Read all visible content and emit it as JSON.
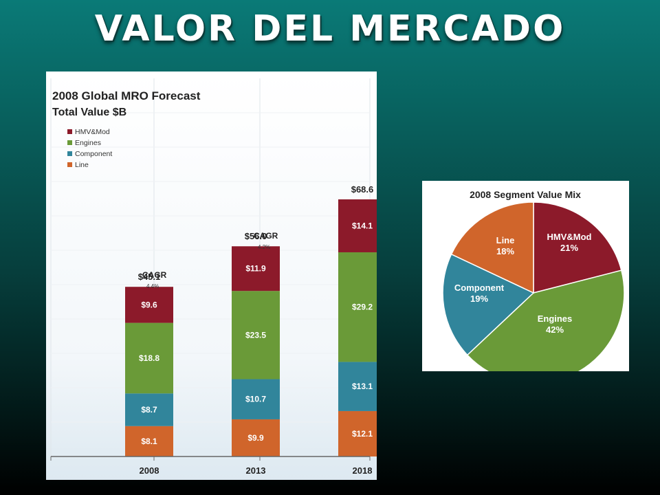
{
  "slide": {
    "title": "VALOR DEL MERCADO"
  },
  "chart_data": [
    {
      "type": "bar",
      "stacked": true,
      "title": "2008 Global MRO Forecast",
      "subtitle": "Total Value $B",
      "categories": [
        "2008",
        "2013",
        "2018"
      ],
      "series": [
        {
          "name": "Line",
          "color": "#d0652b",
          "values": [
            8.1,
            9.9,
            12.1
          ],
          "labels": [
            "$8.1",
            "$9.9",
            "$12.1"
          ]
        },
        {
          "name": "Component",
          "color": "#31859b",
          "values": [
            8.7,
            10.7,
            13.1
          ],
          "labels": [
            "$8.7",
            "$10.7",
            "$13.1"
          ]
        },
        {
          "name": "Engines",
          "color": "#6a9a38",
          "values": [
            18.8,
            23.5,
            29.2
          ],
          "labels": [
            "$18.8",
            "$23.5",
            "$29.2"
          ]
        },
        {
          "name": "HMV&Mod",
          "color": "#8c1a2a",
          "values": [
            9.6,
            11.9,
            14.1
          ],
          "labels": [
            "$9.6",
            "$11.9",
            "$14.1"
          ]
        }
      ],
      "legend_order": [
        "HMV&Mod",
        "Engines",
        "Component",
        "Line"
      ],
      "totals": [
        "$45.1",
        "$56.0",
        "$68.6"
      ],
      "annotations": [
        {
          "label": "CAGR",
          "value": "4.4%"
        },
        {
          "label": "CAGR",
          "value": "4.2%"
        }
      ],
      "legend_position": "top-left",
      "grid": true,
      "ylim": [
        0,
        75
      ]
    },
    {
      "type": "pie",
      "title": "2008 Segment Value Mix",
      "slices": [
        {
          "name": "HMV&Mod",
          "value": 21,
          "label": "21%",
          "color": "#8c1a2a"
        },
        {
          "name": "Engines",
          "value": 42,
          "label": "42%",
          "color": "#6a9a38"
        },
        {
          "name": "Component",
          "value": 19,
          "label": "19%",
          "color": "#31859b"
        },
        {
          "name": "Line",
          "value": 18,
          "label": "18%",
          "color": "#d0652b"
        }
      ]
    }
  ]
}
